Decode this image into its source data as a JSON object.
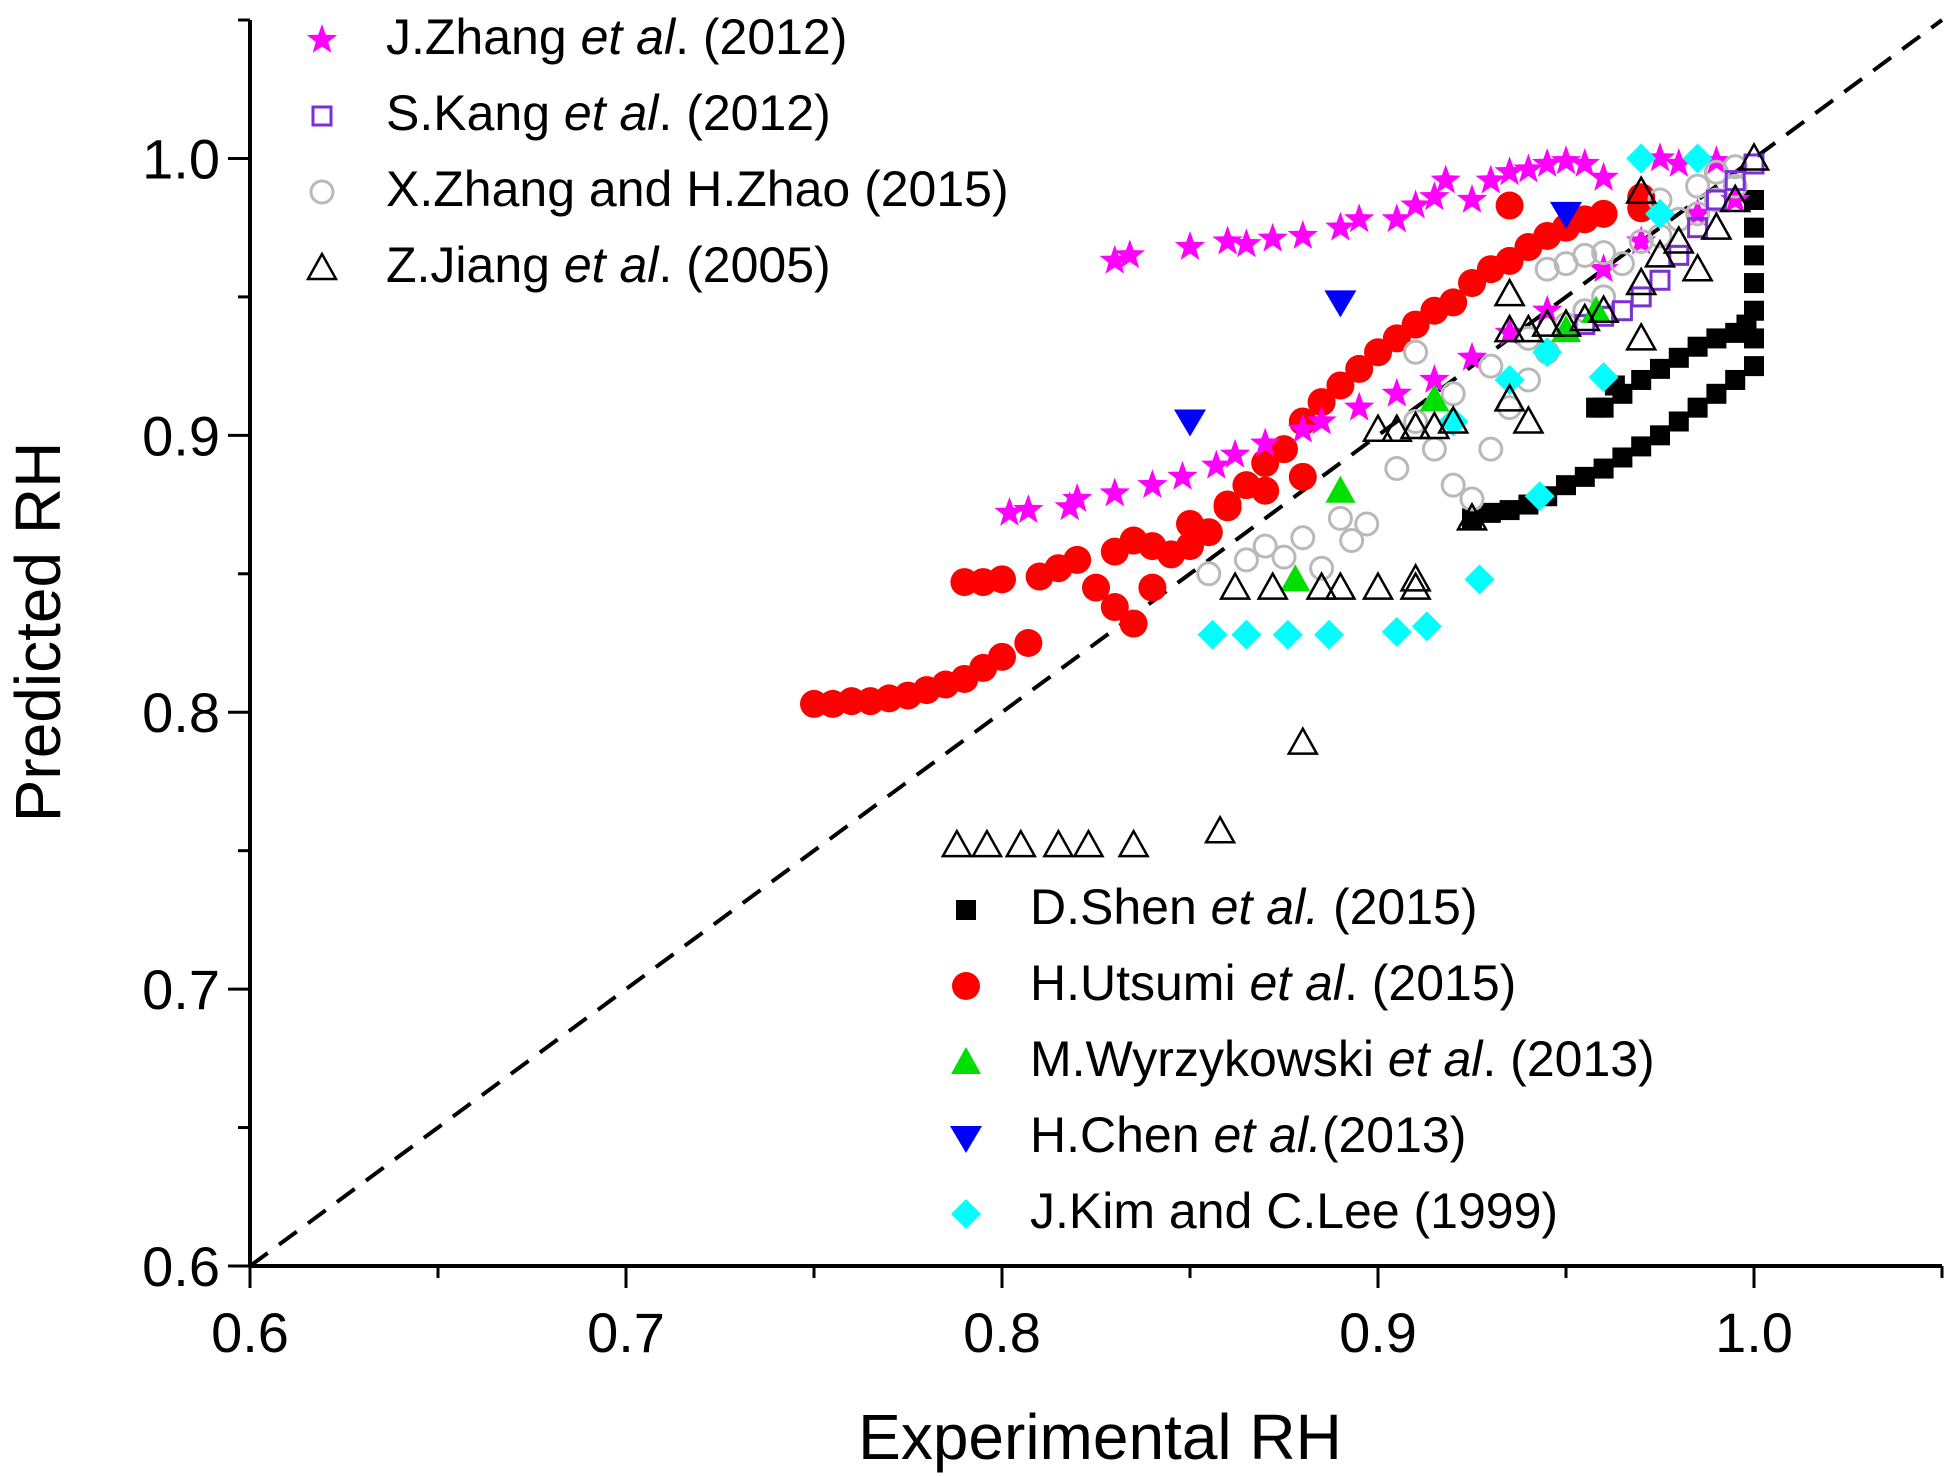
{
  "chart_data": {
    "type": "scatter",
    "xlabel": "Experimental RH",
    "ylabel": "Predicted RH",
    "xlim": [
      0.6,
      1.05
    ],
    "ylim": [
      0.6,
      1.05
    ],
    "xticks": [
      {
        "value": 0.6,
        "label": "0.6"
      },
      {
        "value": 0.7,
        "label": "0.7"
      },
      {
        "value": 0.8,
        "label": "0.8"
      },
      {
        "value": 0.9,
        "label": "0.9"
      },
      {
        "value": 1.0,
        "label": "1.0"
      }
    ],
    "yticks": [
      {
        "value": 0.6,
        "label": "0.6"
      },
      {
        "value": 0.7,
        "label": "0.7"
      },
      {
        "value": 0.8,
        "label": "0.8"
      },
      {
        "value": 0.9,
        "label": "0.9"
      },
      {
        "value": 1.0,
        "label": "1.0"
      }
    ],
    "reference_line": {
      "type": "y=x",
      "style": "dashed",
      "color": "#000000"
    },
    "legend_top": [
      0,
      1,
      2,
      3
    ],
    "legend_bottom": [
      4,
      5,
      6,
      7,
      8
    ],
    "series": [
      {
        "name": "J.Zhang et al. (2012)",
        "parts": [
          "J.Zhang ",
          "et al",
          ". (2012)"
        ],
        "marker": "star",
        "color": "#ff00ff",
        "filled": true,
        "points": [
          [
            0.802,
            0.872
          ],
          [
            0.807,
            0.873
          ],
          [
            0.818,
            0.874
          ],
          [
            0.82,
            0.877
          ],
          [
            0.83,
            0.879
          ],
          [
            0.84,
            0.882
          ],
          [
            0.848,
            0.885
          ],
          [
            0.857,
            0.889
          ],
          [
            0.862,
            0.893
          ],
          [
            0.87,
            0.897
          ],
          [
            0.88,
            0.902
          ],
          [
            0.885,
            0.905
          ],
          [
            0.895,
            0.91
          ],
          [
            0.905,
            0.915
          ],
          [
            0.915,
            0.92
          ],
          [
            0.925,
            0.928
          ],
          [
            0.935,
            0.937
          ],
          [
            0.945,
            0.945
          ],
          [
            0.96,
            0.96
          ],
          [
            0.97,
            0.97
          ],
          [
            0.985,
            0.98
          ],
          [
            0.995,
            0.985
          ],
          [
            0.83,
            0.963
          ],
          [
            0.834,
            0.965
          ],
          [
            0.85,
            0.968
          ],
          [
            0.86,
            0.97
          ],
          [
            0.865,
            0.969
          ],
          [
            0.872,
            0.971
          ],
          [
            0.88,
            0.972
          ],
          [
            0.89,
            0.975
          ],
          [
            0.895,
            0.978
          ],
          [
            0.905,
            0.978
          ],
          [
            0.91,
            0.983
          ],
          [
            0.915,
            0.986
          ],
          [
            0.918,
            0.992
          ],
          [
            0.925,
            0.985
          ],
          [
            0.93,
            0.992
          ],
          [
            0.935,
            0.995
          ],
          [
            0.94,
            0.996
          ],
          [
            0.945,
            0.998
          ],
          [
            0.95,
            0.999
          ],
          [
            0.955,
            0.998
          ],
          [
            0.96,
            0.993
          ],
          [
            0.975,
            1.0
          ],
          [
            0.98,
            0.998
          ],
          [
            0.99,
            0.999
          ]
        ]
      },
      {
        "name": "S.Kang et al. (2012)",
        "parts": [
          "S.Kang ",
          "et al",
          ". (2012)"
        ],
        "marker": "square",
        "color": "#7b2fd6",
        "filled": false,
        "points": [
          [
            0.955,
            0.94
          ],
          [
            0.96,
            0.943
          ],
          [
            0.965,
            0.945
          ],
          [
            0.97,
            0.95
          ],
          [
            0.975,
            0.956
          ],
          [
            0.98,
            0.965
          ],
          [
            0.985,
            0.975
          ],
          [
            0.99,
            0.985
          ],
          [
            0.995,
            0.992
          ],
          [
            1.0,
            0.998
          ]
        ]
      },
      {
        "name": "X.Zhang and H.Zhao (2015)",
        "parts": [
          "X.Zhang and H.Zhao (2015)"
        ],
        "marker": "circle-open",
        "color": "#b9b9b9",
        "filled": false,
        "points": [
          [
            0.855,
            0.85
          ],
          [
            0.865,
            0.855
          ],
          [
            0.87,
            0.86
          ],
          [
            0.875,
            0.856
          ],
          [
            0.88,
            0.863
          ],
          [
            0.885,
            0.852
          ],
          [
            0.89,
            0.87
          ],
          [
            0.893,
            0.862
          ],
          [
            0.897,
            0.868
          ],
          [
            0.905,
            0.888
          ],
          [
            0.91,
            0.905
          ],
          [
            0.915,
            0.895
          ],
          [
            0.92,
            0.882
          ],
          [
            0.925,
            0.877
          ],
          [
            0.93,
            0.895
          ],
          [
            0.935,
            0.91
          ],
          [
            0.94,
            0.92
          ],
          [
            0.945,
            0.93
          ],
          [
            0.95,
            0.94
          ],
          [
            0.955,
            0.945
          ],
          [
            0.96,
            0.95
          ],
          [
            0.965,
            0.962
          ],
          [
            0.97,
            0.97
          ],
          [
            0.975,
            0.972
          ],
          [
            0.98,
            0.978
          ],
          [
            0.985,
            0.98
          ],
          [
            0.99,
            0.985
          ],
          [
            0.995,
            0.99
          ],
          [
            0.91,
            0.93
          ],
          [
            0.92,
            0.915
          ],
          [
            0.93,
            0.925
          ],
          [
            0.94,
            0.935
          ],
          [
            0.945,
            0.96
          ],
          [
            0.95,
            0.962
          ],
          [
            0.955,
            0.965
          ],
          [
            0.96,
            0.966
          ],
          [
            0.975,
            0.985
          ],
          [
            0.985,
            0.99
          ],
          [
            0.99,
            0.995
          ],
          [
            0.995,
            0.997
          ]
        ]
      },
      {
        "name": "Z.Jiang et al. (2005)",
        "parts": [
          "Z.Jiang ",
          "et al",
          ". (2005)"
        ],
        "marker": "triangle-open",
        "color": "#000000",
        "filled": false,
        "points": [
          [
            0.788,
            0.752
          ],
          [
            0.796,
            0.752
          ],
          [
            0.805,
            0.752
          ],
          [
            0.815,
            0.752
          ],
          [
            0.823,
            0.752
          ],
          [
            0.835,
            0.752
          ],
          [
            0.858,
            0.757
          ],
          [
            0.88,
            0.789
          ],
          [
            0.862,
            0.845
          ],
          [
            0.872,
            0.845
          ],
          [
            0.885,
            0.845
          ],
          [
            0.89,
            0.845
          ],
          [
            0.9,
            0.845
          ],
          [
            0.91,
            0.845
          ],
          [
            0.91,
            0.848
          ],
          [
            0.9,
            0.902
          ],
          [
            0.905,
            0.902
          ],
          [
            0.91,
            0.903
          ],
          [
            0.915,
            0.903
          ],
          [
            0.92,
            0.905
          ],
          [
            0.925,
            0.87
          ],
          [
            0.935,
            0.913
          ],
          [
            0.94,
            0.905
          ],
          [
            0.935,
            0.938
          ],
          [
            0.94,
            0.938
          ],
          [
            0.945,
            0.94
          ],
          [
            0.95,
            0.94
          ],
          [
            0.935,
            0.951
          ],
          [
            0.955,
            0.942
          ],
          [
            0.96,
            0.945
          ],
          [
            0.97,
            0.935
          ],
          [
            0.97,
            0.955
          ],
          [
            0.975,
            0.965
          ],
          [
            0.98,
            0.97
          ],
          [
            0.985,
            0.96
          ],
          [
            0.99,
            0.975
          ],
          [
            0.97,
            0.988
          ],
          [
            0.995,
            0.985
          ],
          [
            1.0,
            1.0
          ]
        ]
      },
      {
        "name": "D.Shen et al. (2015)",
        "parts": [
          "D.Shen ",
          "et al.",
          " (2015)"
        ],
        "marker": "square",
        "color": "#000000",
        "filled": true,
        "points": [
          [
            0.925,
            0.87
          ],
          [
            0.93,
            0.872
          ],
          [
            0.935,
            0.873
          ],
          [
            0.94,
            0.875
          ],
          [
            0.945,
            0.878
          ],
          [
            0.95,
            0.882
          ],
          [
            0.955,
            0.885
          ],
          [
            0.96,
            0.888
          ],
          [
            0.965,
            0.892
          ],
          [
            0.97,
            0.896
          ],
          [
            0.975,
            0.9
          ],
          [
            0.98,
            0.905
          ],
          [
            0.985,
            0.91
          ],
          [
            0.99,
            0.915
          ],
          [
            0.995,
            0.92
          ],
          [
            1.0,
            0.925
          ],
          [
            1.0,
            0.935
          ],
          [
            1.0,
            0.945
          ],
          [
            1.0,
            0.955
          ],
          [
            1.0,
            0.965
          ],
          [
            1.0,
            0.975
          ],
          [
            1.0,
            0.985
          ],
          [
            0.998,
            0.94
          ],
          [
            0.995,
            0.937
          ],
          [
            0.99,
            0.935
          ],
          [
            0.985,
            0.932
          ],
          [
            0.98,
            0.928
          ],
          [
            0.975,
            0.924
          ],
          [
            0.97,
            0.92
          ],
          [
            0.965,
            0.915
          ],
          [
            0.96,
            0.91
          ],
          [
            0.963,
            0.918
          ],
          [
            0.958,
            0.91
          ]
        ]
      },
      {
        "name": "H.Utsumi et al. (2015)",
        "parts": [
          "H.Utsumi ",
          "et al",
          ". (2015)"
        ],
        "marker": "circle",
        "color": "#ff0000",
        "filled": true,
        "points": [
          [
            0.75,
            0.803
          ],
          [
            0.755,
            0.803
          ],
          [
            0.76,
            0.804
          ],
          [
            0.765,
            0.804
          ],
          [
            0.77,
            0.805
          ],
          [
            0.775,
            0.806
          ],
          [
            0.78,
            0.808
          ],
          [
            0.785,
            0.81
          ],
          [
            0.79,
            0.812
          ],
          [
            0.795,
            0.816
          ],
          [
            0.8,
            0.82
          ],
          [
            0.807,
            0.825
          ],
          [
            0.79,
            0.847
          ],
          [
            0.795,
            0.847
          ],
          [
            0.8,
            0.848
          ],
          [
            0.81,
            0.849
          ],
          [
            0.815,
            0.852
          ],
          [
            0.82,
            0.855
          ],
          [
            0.83,
            0.858
          ],
          [
            0.835,
            0.862
          ],
          [
            0.825,
            0.845
          ],
          [
            0.83,
            0.838
          ],
          [
            0.835,
            0.832
          ],
          [
            0.84,
            0.845
          ],
          [
            0.845,
            0.857
          ],
          [
            0.85,
            0.86
          ],
          [
            0.855,
            0.865
          ],
          [
            0.86,
            0.875
          ],
          [
            0.865,
            0.882
          ],
          [
            0.87,
            0.89
          ],
          [
            0.875,
            0.895
          ],
          [
            0.88,
            0.905
          ],
          [
            0.885,
            0.912
          ],
          [
            0.89,
            0.918
          ],
          [
            0.895,
            0.924
          ],
          [
            0.9,
            0.93
          ],
          [
            0.905,
            0.935
          ],
          [
            0.91,
            0.94
          ],
          [
            0.915,
            0.945
          ],
          [
            0.92,
            0.948
          ],
          [
            0.925,
            0.955
          ],
          [
            0.93,
            0.96
          ],
          [
            0.935,
            0.963
          ],
          [
            0.94,
            0.968
          ],
          [
            0.945,
            0.972
          ],
          [
            0.95,
            0.975
          ],
          [
            0.955,
            0.978
          ],
          [
            0.96,
            0.98
          ],
          [
            0.97,
            0.982
          ],
          [
            0.97,
            0.986
          ],
          [
            0.935,
            0.983
          ],
          [
            0.84,
            0.86
          ],
          [
            0.85,
            0.868
          ],
          [
            0.86,
            0.874
          ],
          [
            0.87,
            0.88
          ],
          [
            0.88,
            0.885
          ]
        ]
      },
      {
        "name": "M.Wyrzykowski et al. (2013)",
        "parts": [
          "M.Wyrzykowski ",
          "et al",
          ". (2013)"
        ],
        "marker": "triangle-up",
        "color": "#00e000",
        "filled": true,
        "points": [
          [
            0.878,
            0.848
          ],
          [
            0.89,
            0.88
          ],
          [
            0.915,
            0.913
          ],
          [
            0.95,
            0.938
          ],
          [
            0.958,
            0.945
          ]
        ]
      },
      {
        "name": "H.Chen et al.(2013)",
        "parts": [
          "H.Chen ",
          "et al.",
          "(2013)"
        ],
        "marker": "triangle-down",
        "color": "#0000ff",
        "filled": true,
        "points": [
          [
            0.85,
            0.905
          ],
          [
            0.89,
            0.948
          ],
          [
            0.95,
            0.98
          ]
        ]
      },
      {
        "name": "J.Kim and C.Lee (1999)",
        "parts": [
          "J.Kim and C.Lee (1999)"
        ],
        "marker": "diamond",
        "color": "#00ffff",
        "filled": true,
        "points": [
          [
            0.856,
            0.828
          ],
          [
            0.865,
            0.828
          ],
          [
            0.876,
            0.828
          ],
          [
            0.887,
            0.828
          ],
          [
            0.905,
            0.829
          ],
          [
            0.913,
            0.831
          ],
          [
            0.927,
            0.848
          ],
          [
            0.943,
            0.878
          ],
          [
            0.96,
            0.921
          ],
          [
            0.945,
            0.93
          ],
          [
            0.92,
            0.905
          ],
          [
            0.935,
            0.92
          ],
          [
            0.97,
            1.0
          ],
          [
            0.985,
            1.0
          ],
          [
            0.975,
            0.98
          ]
        ]
      }
    ]
  }
}
